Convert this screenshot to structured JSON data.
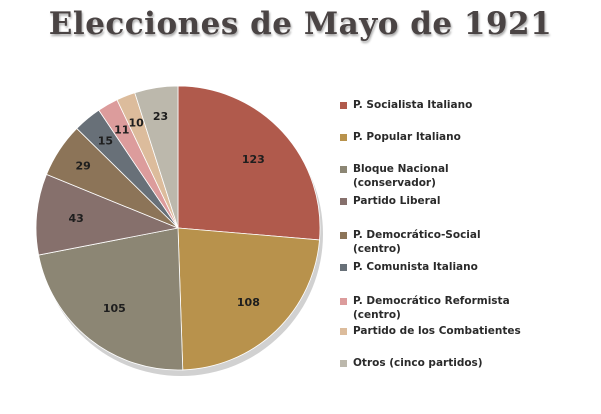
{
  "chart_data": {
    "type": "pie",
    "title": "Elecciones de Mayo de 1921",
    "legend_position": "right",
    "slices": [
      {
        "label": "P. Socialista Italiano",
        "value": 123,
        "color": "#b05a4c"
      },
      {
        "label": "P. Popular Italiano",
        "value": 108,
        "color": "#b8924c"
      },
      {
        "label": "Bloque Nacional\n(conservador)",
        "value": 105,
        "color": "#8c8674"
      },
      {
        "label": "Partido Liberal",
        "value": 43,
        "color": "#86706c"
      },
      {
        "label": "P. Democrático-Social\n(centro)",
        "value": 29,
        "color": "#8c7458"
      },
      {
        "label": "P. Comunista Italiano",
        "value": 15,
        "color": "#687078"
      },
      {
        "label": "P. Democrático Reformista\n(centro)",
        "value": 11,
        "color": "#dc9c9c"
      },
      {
        "label": "Partido de los Combatientes",
        "value": 10,
        "color": "#dcbc9c"
      },
      {
        "label": "Otros (cinco partidos)",
        "value": 23,
        "color": "#bcb8ac"
      }
    ]
  }
}
